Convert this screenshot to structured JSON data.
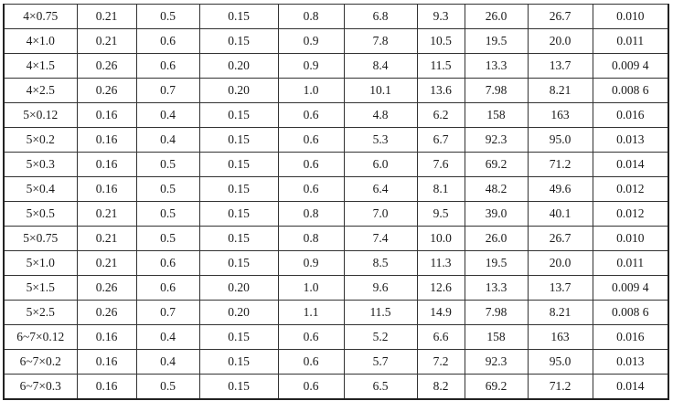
{
  "table": {
    "rows": [
      [
        "4×0.75",
        "0.21",
        "0.5",
        "0.15",
        "0.8",
        "6.8",
        "9.3",
        "26.0",
        "26.7",
        "0.010"
      ],
      [
        "4×1.0",
        "0.21",
        "0.6",
        "0.15",
        "0.9",
        "7.8",
        "10.5",
        "19.5",
        "20.0",
        "0.011"
      ],
      [
        "4×1.5",
        "0.26",
        "0.6",
        "0.20",
        "0.9",
        "8.4",
        "11.5",
        "13.3",
        "13.7",
        "0.009 4"
      ],
      [
        "4×2.5",
        "0.26",
        "0.7",
        "0.20",
        "1.0",
        "10.1",
        "13.6",
        "7.98",
        "8.21",
        "0.008 6"
      ],
      [
        "5×0.12",
        "0.16",
        "0.4",
        "0.15",
        "0.6",
        "4.8",
        "6.2",
        "158",
        "163",
        "0.016"
      ],
      [
        "5×0.2",
        "0.16",
        "0.4",
        "0.15",
        "0.6",
        "5.3",
        "6.7",
        "92.3",
        "95.0",
        "0.013"
      ],
      [
        "5×0.3",
        "0.16",
        "0.5",
        "0.15",
        "0.6",
        "6.0",
        "7.6",
        "69.2",
        "71.2",
        "0.014"
      ],
      [
        "5×0.4",
        "0.16",
        "0.5",
        "0.15",
        "0.6",
        "6.4",
        "8.1",
        "48.2",
        "49.6",
        "0.012"
      ],
      [
        "5×0.5",
        "0.21",
        "0.5",
        "0.15",
        "0.8",
        "7.0",
        "9.5",
        "39.0",
        "40.1",
        "0.012"
      ],
      [
        "5×0.75",
        "0.21",
        "0.5",
        "0.15",
        "0.8",
        "7.4",
        "10.0",
        "26.0",
        "26.7",
        "0.010"
      ],
      [
        "5×1.0",
        "0.21",
        "0.6",
        "0.15",
        "0.9",
        "8.5",
        "11.3",
        "19.5",
        "20.0",
        "0.011"
      ],
      [
        "5×1.5",
        "0.26",
        "0.6",
        "0.20",
        "1.0",
        "9.6",
        "12.6",
        "13.3",
        "13.7",
        "0.009 4"
      ],
      [
        "5×2.5",
        "0.26",
        "0.7",
        "0.20",
        "1.1",
        "11.5",
        "14.9",
        "7.98",
        "8.21",
        "0.008 6"
      ],
      [
        "6~7×0.12",
        "0.16",
        "0.4",
        "0.15",
        "0.6",
        "5.2",
        "6.6",
        "158",
        "163",
        "0.016"
      ],
      [
        "6~7×0.2",
        "0.16",
        "0.4",
        "0.15",
        "0.6",
        "5.7",
        "7.2",
        "92.3",
        "95.0",
        "0.013"
      ],
      [
        "6~7×0.3",
        "0.16",
        "0.5",
        "0.15",
        "0.6",
        "6.5",
        "8.2",
        "69.2",
        "71.2",
        "0.014"
      ]
    ]
  }
}
